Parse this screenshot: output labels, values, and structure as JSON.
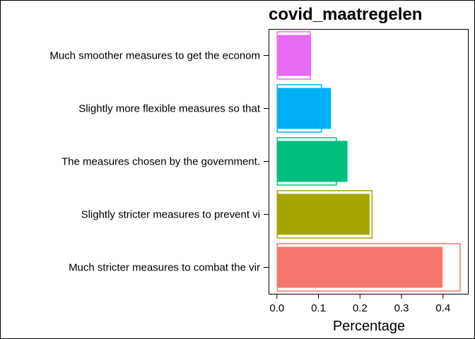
{
  "chart_data": {
    "type": "bar",
    "orientation": "horizontal",
    "title": "covid_maatregelen",
    "xlabel": "Percentage",
    "ylabel": "",
    "xlim": [
      -0.02,
      0.46
    ],
    "xticks": [
      "0.0",
      "0.1",
      "0.2",
      "0.3",
      "0.4"
    ],
    "xtick_values": [
      0.0,
      0.1,
      0.2,
      0.3,
      0.4
    ],
    "grid": false,
    "legend": "none",
    "categories": [
      "Much smoother measures to get the econom",
      "Slightly more flexible measures so that",
      "The measures chosen by the government.",
      "Slightly stricter measures to prevent vi",
      "Much stricter measures to combat the vir"
    ],
    "series": [
      {
        "name": "",
        "values": [
          0.082,
          0.13,
          0.17,
          0.223,
          0.399
        ]
      },
      {
        "name": "",
        "values": [
          0.081,
          0.108,
          0.144,
          0.23,
          0.442
        ]
      }
    ],
    "colors": [
      "#E76BF3",
      "#00B0F6",
      "#00BF7D",
      "#A3A500",
      "#F8766D"
    ]
  }
}
